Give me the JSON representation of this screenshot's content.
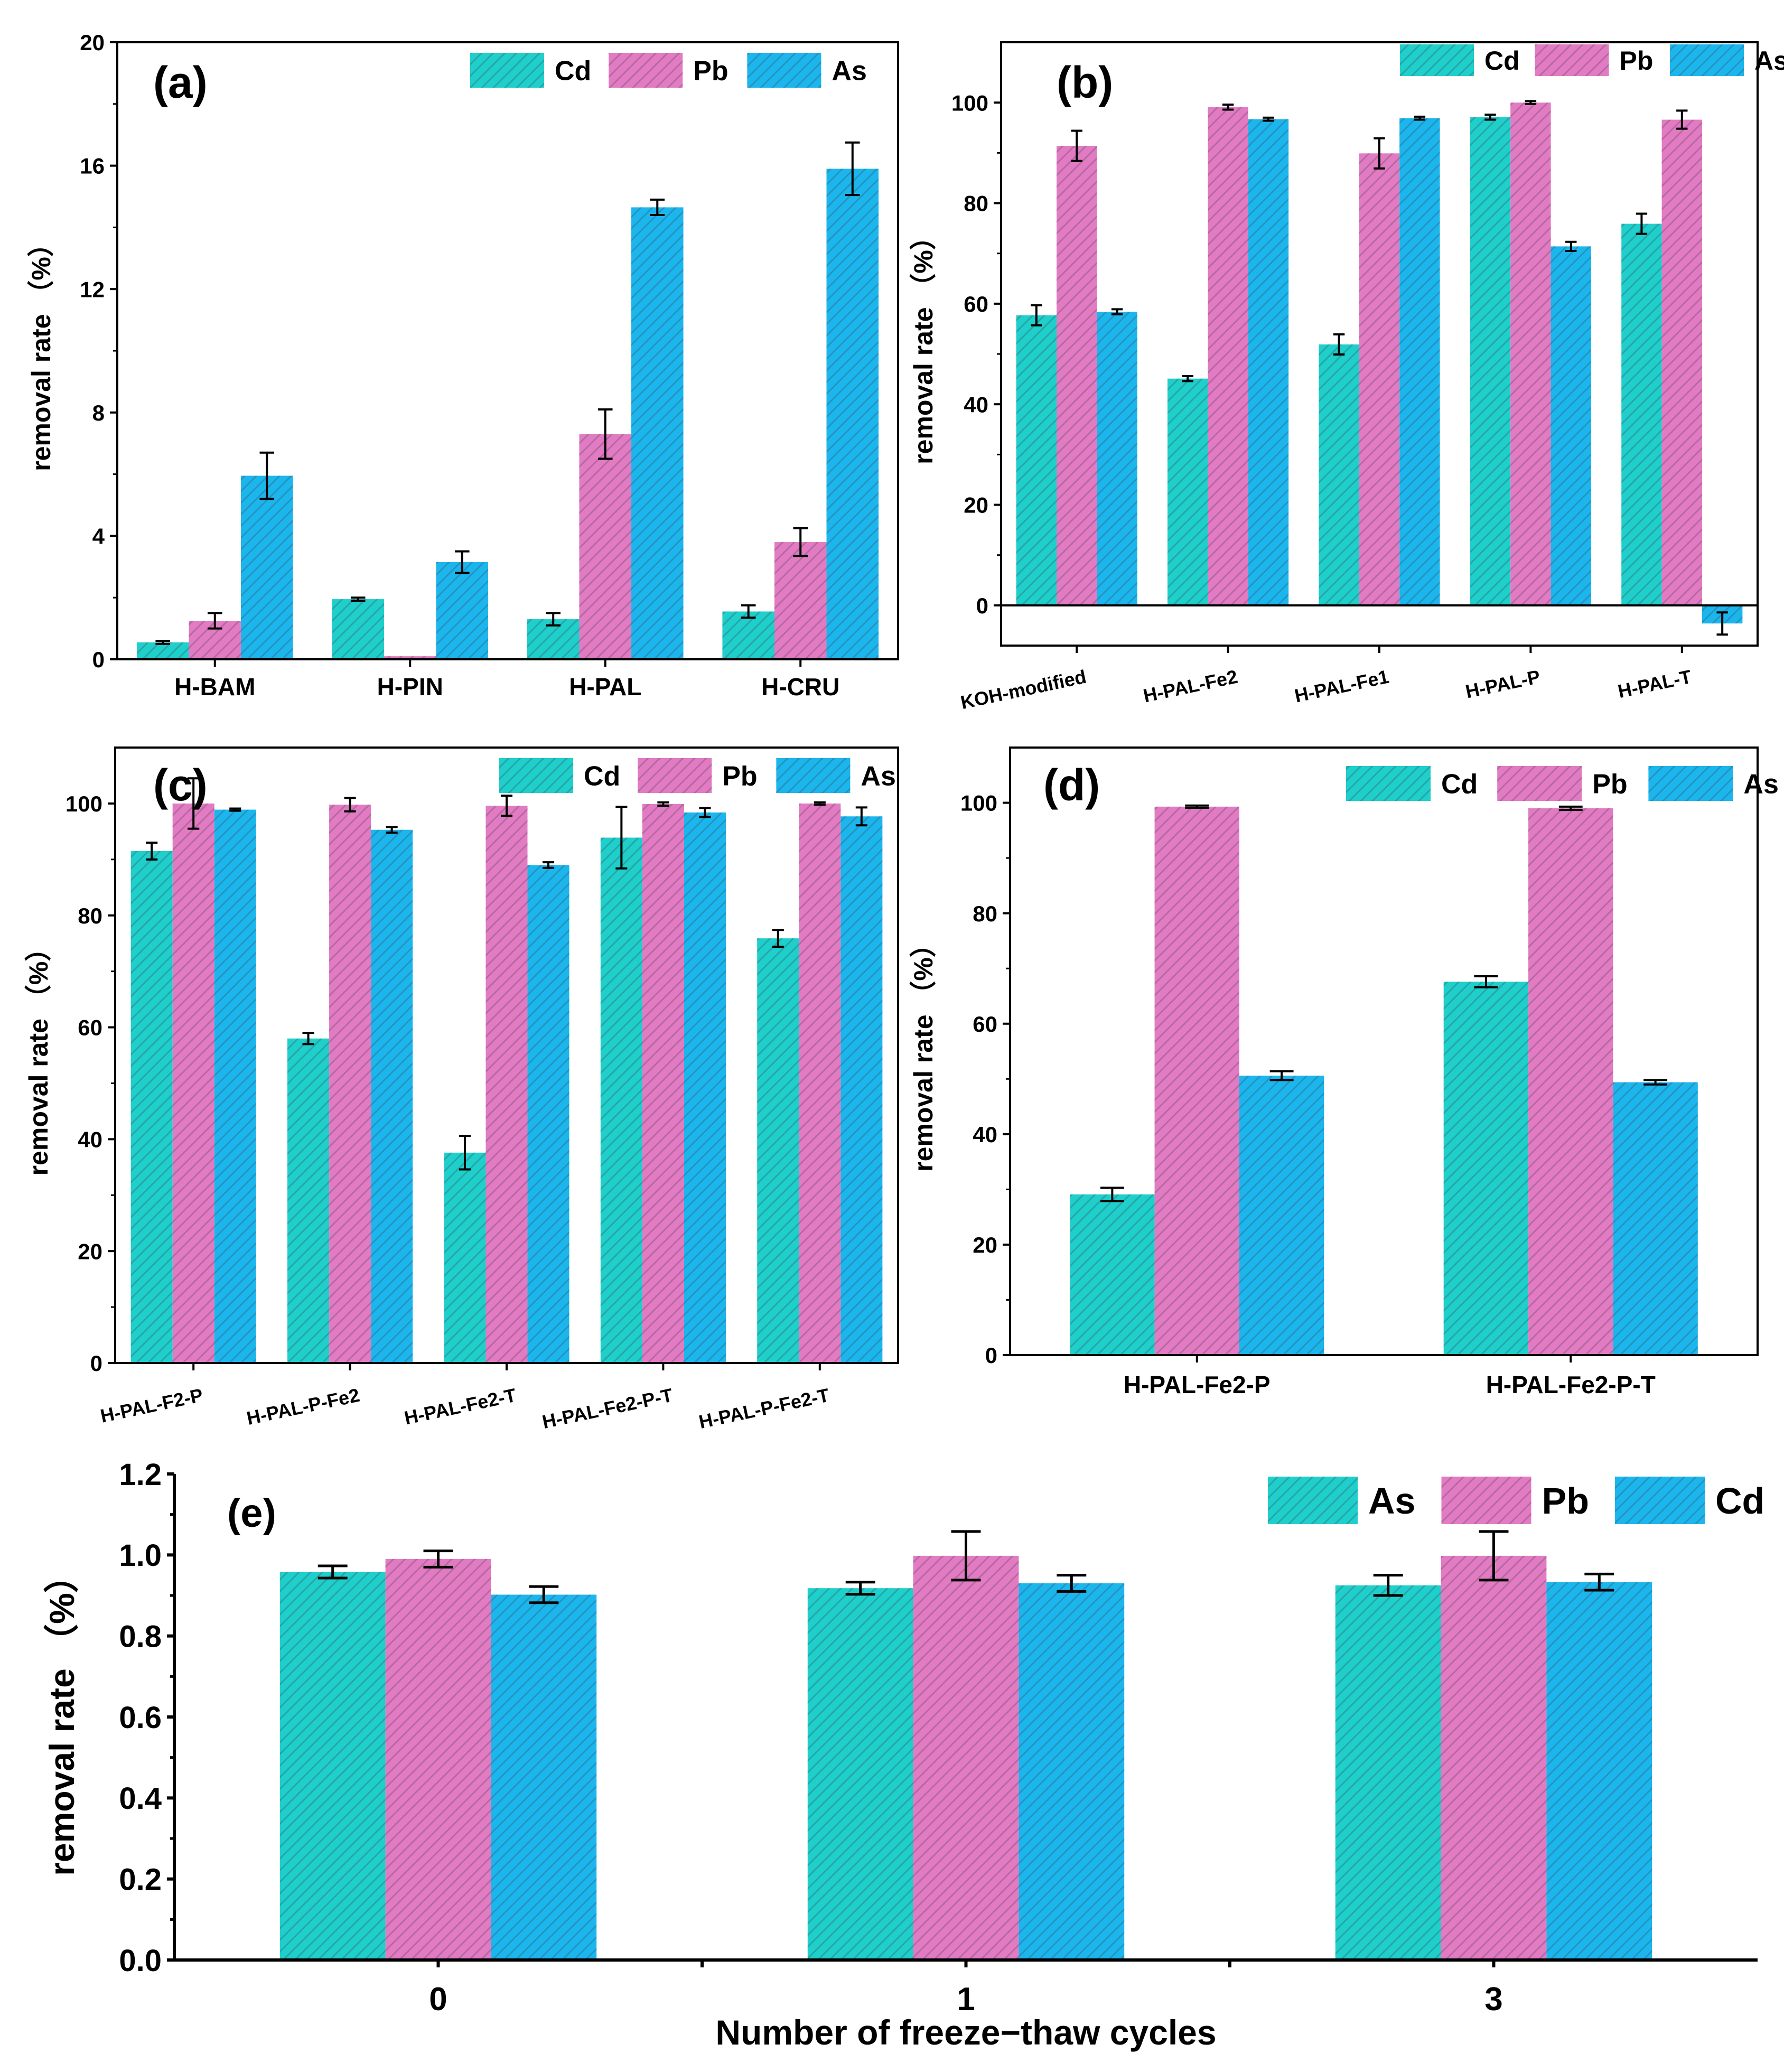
{
  "colors": {
    "teal": "#1ECFCC",
    "pink": "#E27BC3",
    "blue": "#1CB6EE",
    "axis": "#000000",
    "background": "#FFFFFF"
  },
  "chart_data": [
    {
      "id": "a",
      "panel_label": "(a)",
      "type": "bar",
      "ylabel": "removal rate （%）",
      "xlabel": "",
      "ylim": [
        0,
        20
      ],
      "yticks": [
        0,
        4,
        8,
        12,
        16,
        20
      ],
      "categories": [
        "H-BAM",
        "H-PIN",
        "H-PAL",
        "H-CRU"
      ],
      "series": [
        {
          "name": "Cd",
          "color": "teal",
          "values": [
            0.55,
            1.95,
            1.3,
            1.55
          ],
          "errors": [
            0.05,
            0.05,
            0.2,
            0.2
          ]
        },
        {
          "name": "Pb",
          "color": "pink",
          "values": [
            1.25,
            0.1,
            7.3,
            3.8
          ],
          "errors": [
            0.25,
            0.0,
            0.8,
            0.45
          ]
        },
        {
          "name": "As",
          "color": "blue",
          "values": [
            5.95,
            3.15,
            14.65,
            15.9
          ],
          "errors": [
            0.75,
            0.35,
            0.25,
            0.85
          ]
        }
      ],
      "legend": "top-right",
      "rotated_ticks": false
    },
    {
      "id": "b",
      "panel_label": "(b)",
      "type": "bar",
      "ylabel": "removal rate （%）",
      "xlabel": "",
      "ylim": [
        -8,
        112
      ],
      "yticks": [
        0,
        20,
        40,
        60,
        80,
        100
      ],
      "categories": [
        "KOH-modified",
        "H-PAL-Fe2",
        "H-PAL-Fe1",
        "H-PAL-P",
        "H-PAL-T"
      ],
      "series": [
        {
          "name": "Cd",
          "color": "teal",
          "values": [
            57.7,
            45.1,
            51.9,
            97.1,
            75.9
          ],
          "errors": [
            2.0,
            0.5,
            2.0,
            0.5,
            2.0
          ]
        },
        {
          "name": "Pb",
          "color": "pink",
          "values": [
            91.4,
            99.1,
            89.9,
            100.0,
            96.6
          ],
          "errors": [
            3.0,
            0.5,
            3.0,
            0.3,
            1.8
          ]
        },
        {
          "name": "As",
          "color": "blue",
          "values": [
            58.4,
            96.7,
            96.9,
            71.4,
            -3.6
          ],
          "errors": [
            0.5,
            0.3,
            0.3,
            0.9,
            2.2
          ]
        }
      ],
      "legend": "top-right",
      "rotated_ticks": true
    },
    {
      "id": "c",
      "panel_label": "(c)",
      "type": "bar",
      "ylabel": "removal rate （%）",
      "xlabel": "",
      "ylim": [
        0,
        110
      ],
      "yticks": [
        0,
        20,
        40,
        60,
        80,
        100
      ],
      "categories": [
        "H-PAL-F2-P",
        "H-PAL-P-Fe2",
        "H-PAL-Fe2-T",
        "H-PAL-Fe2-P-T",
        "H-PAL-P-Fe2-T"
      ],
      "series": [
        {
          "name": "Cd",
          "color": "teal",
          "values": [
            91.5,
            58.0,
            37.6,
            93.9,
            75.9
          ],
          "errors": [
            1.5,
            1.0,
            3.0,
            5.5,
            1.5
          ]
        },
        {
          "name": "Pb",
          "color": "pink",
          "values": [
            100.0,
            99.8,
            99.6,
            99.9,
            100.0
          ],
          "errors": [
            4.5,
            1.2,
            1.8,
            0.3,
            0.2
          ]
        },
        {
          "name": "As",
          "color": "blue",
          "values": [
            98.9,
            95.3,
            89.0,
            98.4,
            97.7
          ],
          "errors": [
            0.2,
            0.5,
            0.5,
            0.8,
            1.6
          ]
        }
      ],
      "legend": "top-right",
      "rotated_ticks": true
    },
    {
      "id": "d",
      "panel_label": "(d)",
      "type": "bar",
      "ylabel": "removal rate （%）",
      "xlabel": "",
      "ylim": [
        0,
        110
      ],
      "yticks": [
        0,
        20,
        40,
        60,
        80,
        100
      ],
      "categories": [
        "H-PAL-Fe2-P",
        "H-PAL-Fe2-P-T"
      ],
      "series": [
        {
          "name": "Cd",
          "color": "teal",
          "values": [
            29.1,
            67.6
          ],
          "errors": [
            1.2,
            1.0
          ]
        },
        {
          "name": "Pb",
          "color": "pink",
          "values": [
            99.3,
            99.0
          ],
          "errors": [
            0.2,
            0.3
          ]
        },
        {
          "name": "As",
          "color": "blue",
          "values": [
            50.6,
            49.4
          ],
          "errors": [
            0.8,
            0.4
          ]
        }
      ],
      "legend": "top-right",
      "rotated_ticks": false
    },
    {
      "id": "e",
      "panel_label": "(e)",
      "type": "bar",
      "ylabel": "removal rate （%）",
      "xlabel": "Number of freeze−thaw cycles",
      "ylim": [
        0,
        1.2
      ],
      "yticks": [
        0.0,
        0.2,
        0.4,
        0.6,
        0.8,
        1.0,
        1.2
      ],
      "categories": [
        "0",
        "1",
        "3"
      ],
      "series": [
        {
          "name": "As",
          "color": "teal",
          "values": [
            0.958,
            0.918,
            0.925
          ],
          "errors": [
            0.015,
            0.015,
            0.025
          ]
        },
        {
          "name": "Pb",
          "color": "pink",
          "values": [
            0.99,
            0.998,
            0.998
          ],
          "errors": [
            0.02,
            0.06,
            0.06
          ]
        },
        {
          "name": "Cd",
          "color": "blue",
          "values": [
            0.902,
            0.93,
            0.933
          ],
          "errors": [
            0.02,
            0.02,
            0.02
          ]
        }
      ],
      "legend": "top-right",
      "rotated_ticks": false
    }
  ]
}
